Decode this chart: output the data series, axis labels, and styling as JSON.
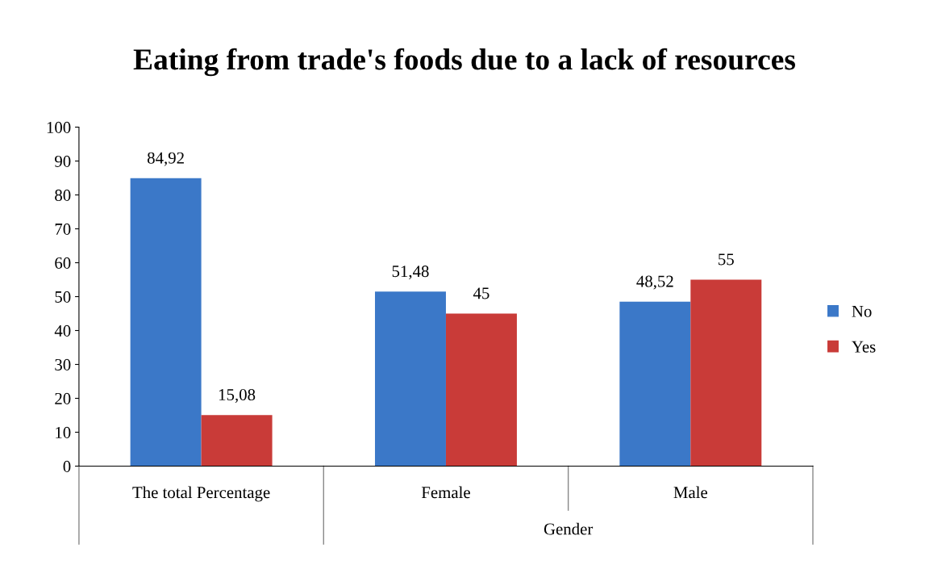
{
  "chart_data": {
    "type": "bar",
    "title": "Eating from trade's foods due to a lack of resources",
    "categories": [
      "The total Percentage",
      "Female",
      "Male"
    ],
    "series": [
      {
        "name": "No",
        "color": "#3b78c8",
        "values": [
          84.92,
          51.48,
          48.52
        ],
        "value_labels": [
          "84,92",
          "51,48",
          "48,52"
        ]
      },
      {
        "name": "Yes",
        "color": "#c93b38",
        "values": [
          15.08,
          45,
          55
        ],
        "value_labels": [
          "15,08",
          "45",
          "55"
        ]
      }
    ],
    "annotations": [
      "Gender"
    ],
    "ylim": [
      0,
      100
    ],
    "yticks": [
      0,
      10,
      20,
      30,
      40,
      50,
      60,
      70,
      80,
      90,
      100
    ],
    "grid": false,
    "legend": "right"
  }
}
